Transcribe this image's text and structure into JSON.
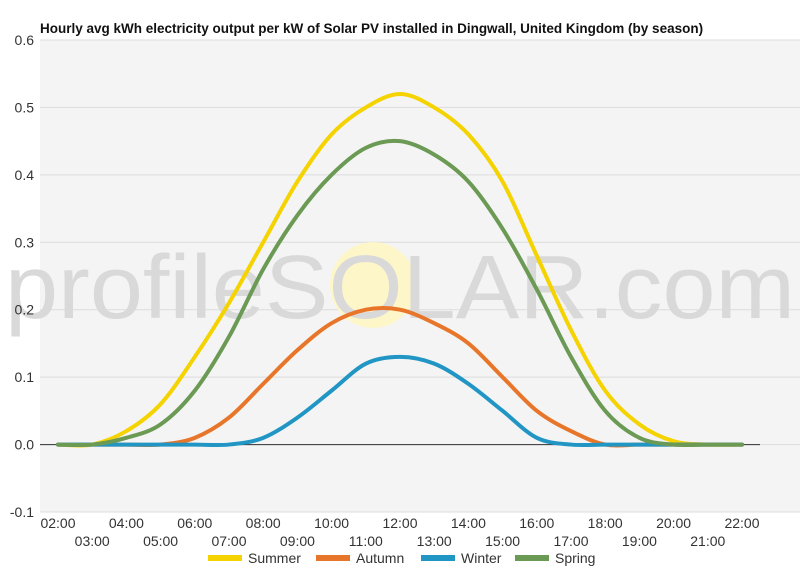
{
  "chart_data": {
    "type": "line",
    "title": "Hourly avg kWh electricity output per kW of Solar PV installed in Dingwall, United Kingdom (by season)",
    "xlabel": "",
    "ylabel": "",
    "x": [
      "02:00",
      "03:00",
      "04:00",
      "05:00",
      "06:00",
      "07:00",
      "08:00",
      "09:00",
      "10:00",
      "11:00",
      "12:00",
      "13:00",
      "14:00",
      "15:00",
      "16:00",
      "17:00",
      "18:00",
      "19:00",
      "20:00",
      "21:00",
      "22:00"
    ],
    "ylim": [
      -0.1,
      0.6
    ],
    "yticks": [
      "-0.1",
      "0.0",
      "0.1",
      "0.2",
      "0.3",
      "0.4",
      "0.5",
      "0.6"
    ],
    "grid": true,
    "legend_position": "bottom",
    "series": [
      {
        "name": "Summer",
        "color": "#f5d300",
        "values": [
          0.0,
          0.0,
          0.02,
          0.06,
          0.13,
          0.21,
          0.3,
          0.39,
          0.46,
          0.5,
          0.52,
          0.5,
          0.46,
          0.39,
          0.28,
          0.17,
          0.08,
          0.03,
          0.005,
          0.0,
          0.0
        ]
      },
      {
        "name": "Autumn",
        "color": "#e8762a",
        "values": [
          0.0,
          0.0,
          0.0,
          0.0,
          0.01,
          0.04,
          0.09,
          0.14,
          0.18,
          0.2,
          0.2,
          0.18,
          0.15,
          0.1,
          0.05,
          0.02,
          0.0,
          0.0,
          0.0,
          0.0,
          0.0
        ]
      },
      {
        "name": "Winter",
        "color": "#2196c4",
        "values": [
          0.0,
          0.0,
          0.0,
          0.0,
          0.0,
          0.0,
          0.01,
          0.04,
          0.08,
          0.12,
          0.13,
          0.12,
          0.09,
          0.05,
          0.01,
          0.0,
          0.0,
          0.0,
          0.0,
          0.0,
          0.0
        ]
      },
      {
        "name": "Spring",
        "color": "#6b9a54",
        "values": [
          0.0,
          0.0,
          0.01,
          0.03,
          0.08,
          0.16,
          0.26,
          0.34,
          0.4,
          0.44,
          0.45,
          0.43,
          0.39,
          0.32,
          0.23,
          0.13,
          0.05,
          0.01,
          0.0,
          0.0,
          0.0
        ]
      }
    ]
  },
  "watermark": {
    "text": "profileSOLAR.com"
  }
}
